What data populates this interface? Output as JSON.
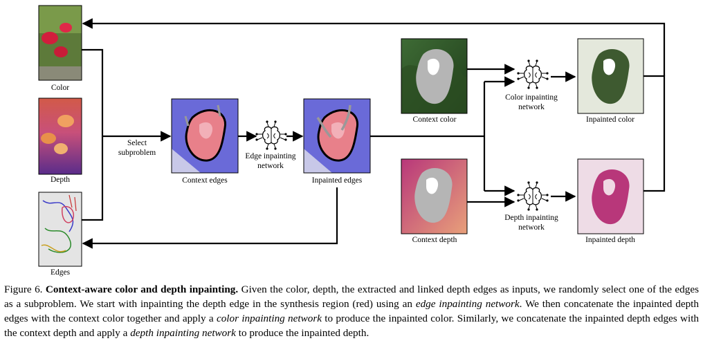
{
  "figure": {
    "labels": {
      "color": "Color",
      "depth": "Depth",
      "edges": "Edges",
      "select_line1": "Select",
      "select_line2": "subproblem",
      "context_edges": "Context edges",
      "edge_net_line1": "Edge inpainting",
      "edge_net_line2": "network",
      "inpainted_edges": "Inpainted edges",
      "context_color": "Context color",
      "color_net_line1": "Color inpainting",
      "color_net_line2": "network",
      "inpainted_color": "Inpainted color",
      "context_depth": "Context depth",
      "depth_net_line1": "Depth inpainting",
      "depth_net_line2": "network",
      "inpainted_depth": "Inpainted depth"
    },
    "icons": {
      "network": "brain-circuit-icon"
    },
    "colors": {
      "edge_bg": "#6a6ad8",
      "synthesis_red": "#e8808a",
      "depth_magenta": "#b8377a",
      "context_gray": "#b5b5b5"
    }
  },
  "caption": {
    "prefix": "Figure 6. ",
    "title": "Context-aware color and depth inpainting.",
    "t1": " Given the color, depth, the extracted and linked depth edges as inputs, we randomly select one of the edges as a subproblem. We start with inpainting the depth edge in the synthesis region (red) using an ",
    "e1": "edge inpainting network",
    "t2": ". We then concatenate the inpainted depth edges with the context color together and apply a ",
    "e2": "color inpainting network",
    "t3": " to produce the inpainted color. Similarly, we concatenate the inpainted depth edges with the context depth and apply a ",
    "e3": "depth inpainting network",
    "t4": " to produce the inpainted depth."
  }
}
